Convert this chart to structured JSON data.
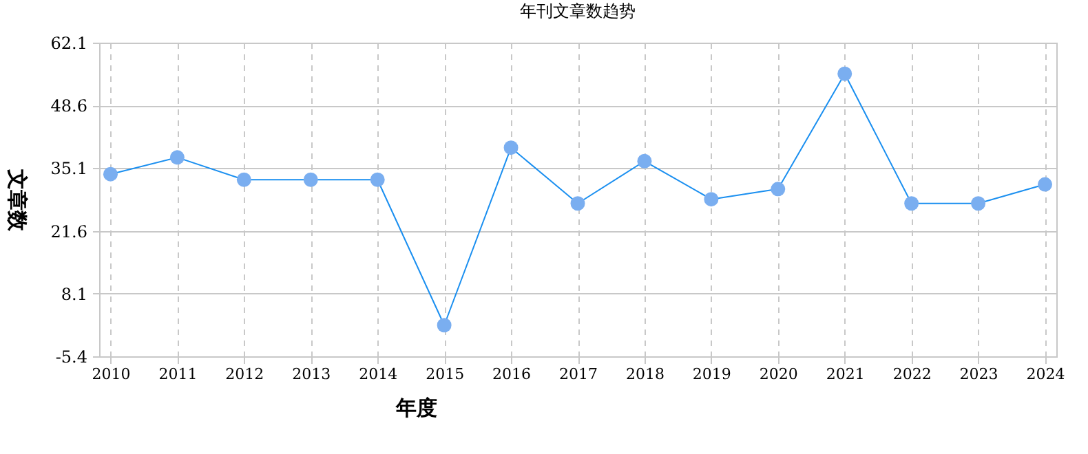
{
  "chart_data": {
    "type": "line",
    "title": "年刊文章数趋势",
    "xlabel": "年度",
    "ylabel": "文章数",
    "categories": [
      "2010",
      "2011",
      "2012",
      "2013",
      "2014",
      "2015",
      "2016",
      "2017",
      "2018",
      "2019",
      "2020",
      "2021",
      "2022",
      "2023",
      "2024"
    ],
    "series": [
      {
        "color": "#1a8ff0",
        "values": [
          33.8,
          37.4,
          32.6,
          32.6,
          32.6,
          1.3,
          39.5,
          27.5,
          36.6,
          28.4,
          30.6,
          55.4,
          27.5,
          27.5,
          31.6
        ]
      }
    ],
    "ylim": [
      -5.4,
      62.1
    ],
    "yticks": [
      -5.4,
      8.1,
      21.6,
      35.1,
      48.6,
      62.1
    ],
    "grid": true,
    "marker": "circle",
    "line_style": "solid"
  }
}
